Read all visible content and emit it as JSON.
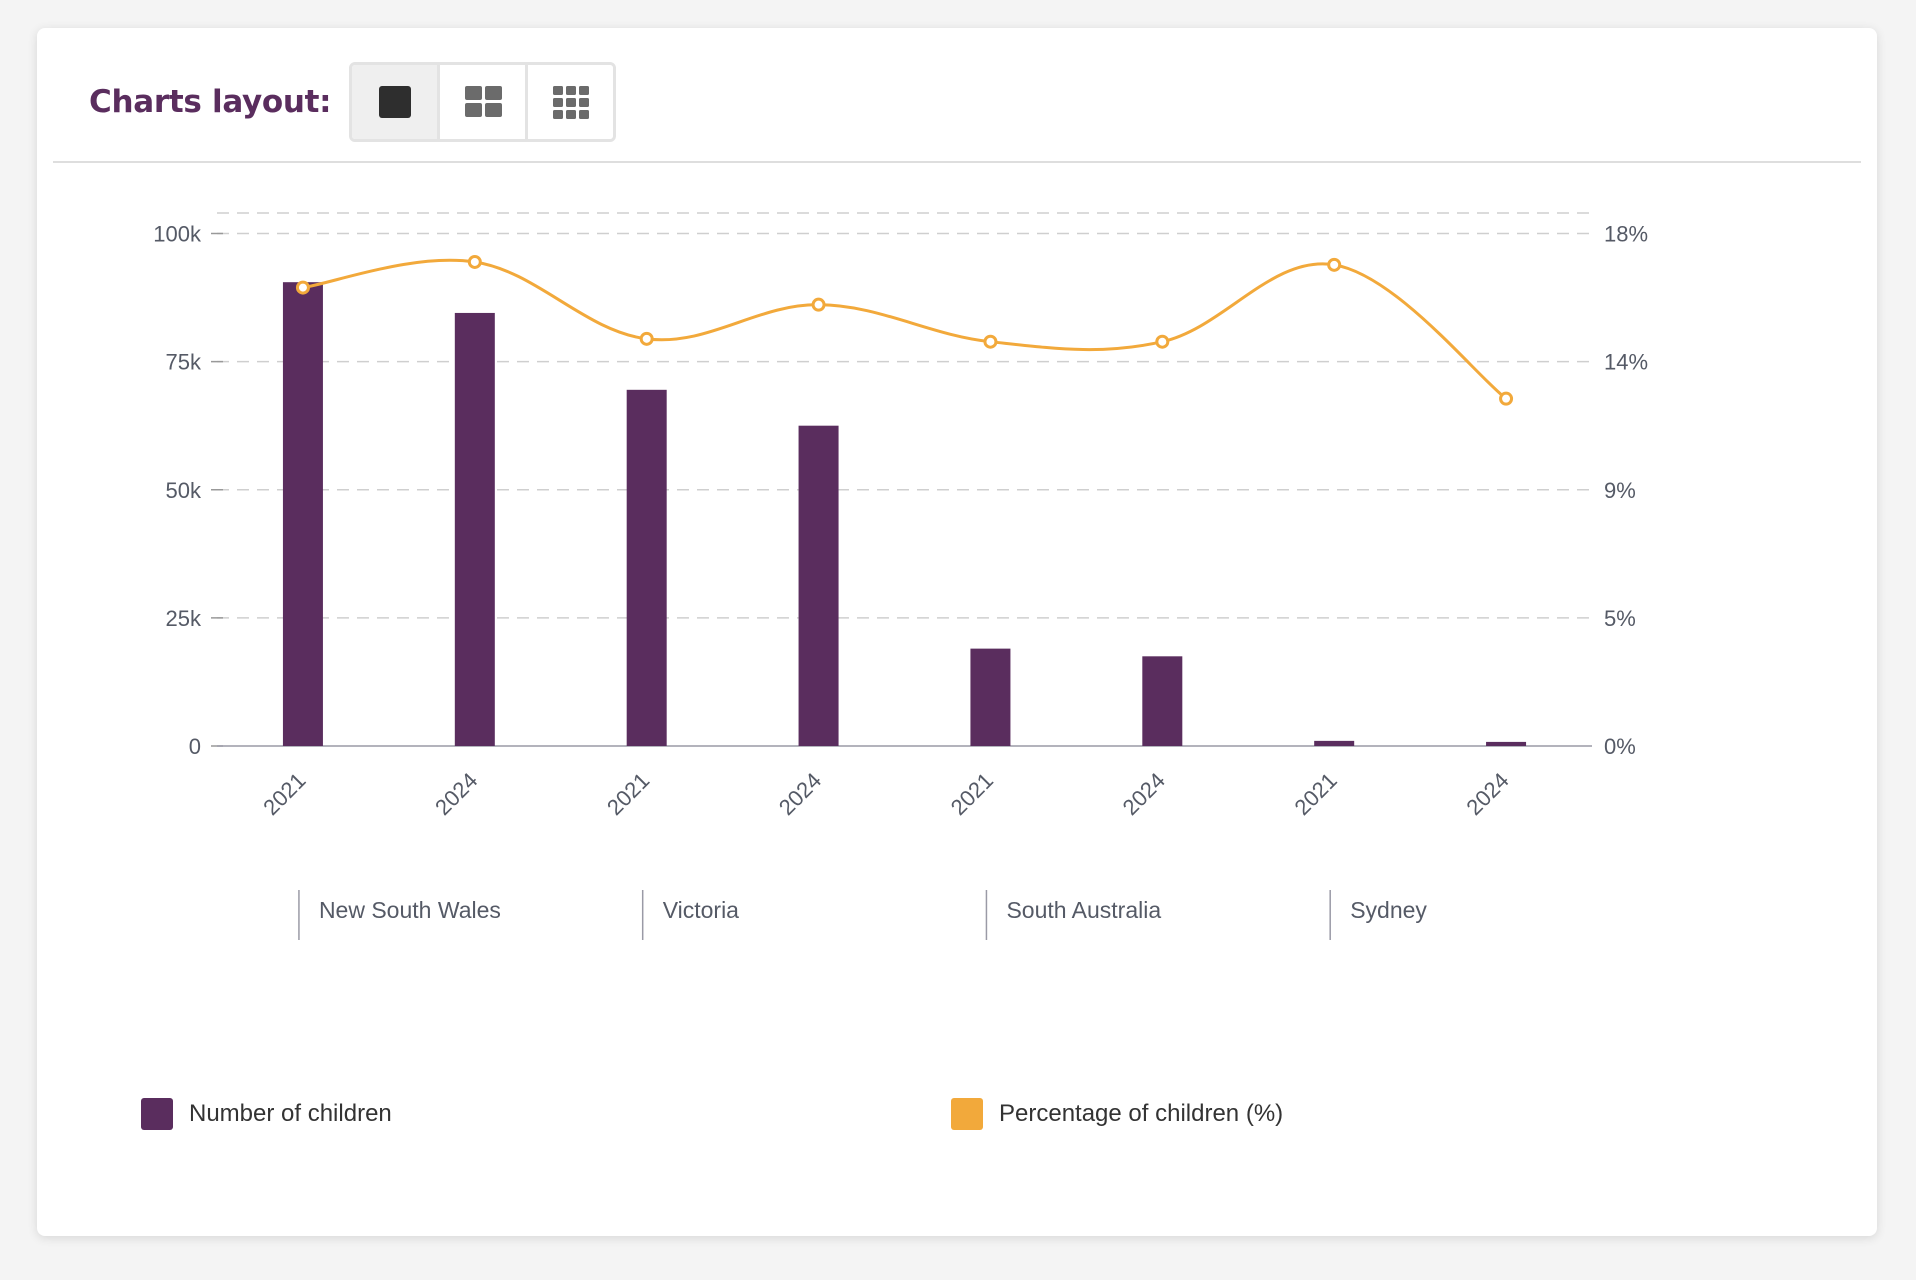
{
  "toolbar": {
    "label": "Charts layout:",
    "buttons": [
      {
        "name": "single-layout",
        "icon": "single-square-icon",
        "active": true
      },
      {
        "name": "two-column-layout",
        "icon": "grid-2x2-icon",
        "active": false
      },
      {
        "name": "three-column-layout",
        "icon": "grid-3x3-icon",
        "active": false
      }
    ]
  },
  "colors": {
    "bar": "#5a2d5e",
    "line": "#f2a93b",
    "axis_text": "#555a66",
    "grid": "#cfcfcf"
  },
  "chart_data": {
    "type": "bar",
    "categories": [
      "2021",
      "2024",
      "2021",
      "2024",
      "2021",
      "2024",
      "2021",
      "2024"
    ],
    "groups": [
      {
        "label": "New South Wales",
        "span": [
          0,
          1
        ]
      },
      {
        "label": "Victoria",
        "span": [
          2,
          3
        ]
      },
      {
        "label": "South Australia",
        "span": [
          4,
          5
        ]
      },
      {
        "label": "Sydney",
        "span": [
          6,
          7
        ]
      }
    ],
    "series": [
      {
        "name": "Number of children",
        "type": "bar",
        "axis": "left",
        "values": [
          90500,
          84500,
          69500,
          62500,
          19000,
          17500,
          1000,
          800
        ]
      },
      {
        "name": "Percentage of children (%)",
        "type": "line",
        "axis": "right",
        "values": [
          16.1,
          17.0,
          14.3,
          15.5,
          14.2,
          14.2,
          16.9,
          12.2
        ]
      }
    ],
    "y_left": {
      "ticks": [
        "0",
        "25k",
        "50k",
        "75k",
        "100k"
      ],
      "tick_values": [
        0,
        25000,
        50000,
        75000,
        100000
      ],
      "range": [
        0,
        104000
      ]
    },
    "y_right": {
      "ticks": [
        "0%",
        "5%",
        "9%",
        "14%",
        "18%"
      ],
      "tick_values": [
        0,
        4.5,
        9,
        13.5,
        18
      ],
      "range": [
        0,
        18.72
      ]
    },
    "grid": true,
    "legend_position": "bottom"
  }
}
